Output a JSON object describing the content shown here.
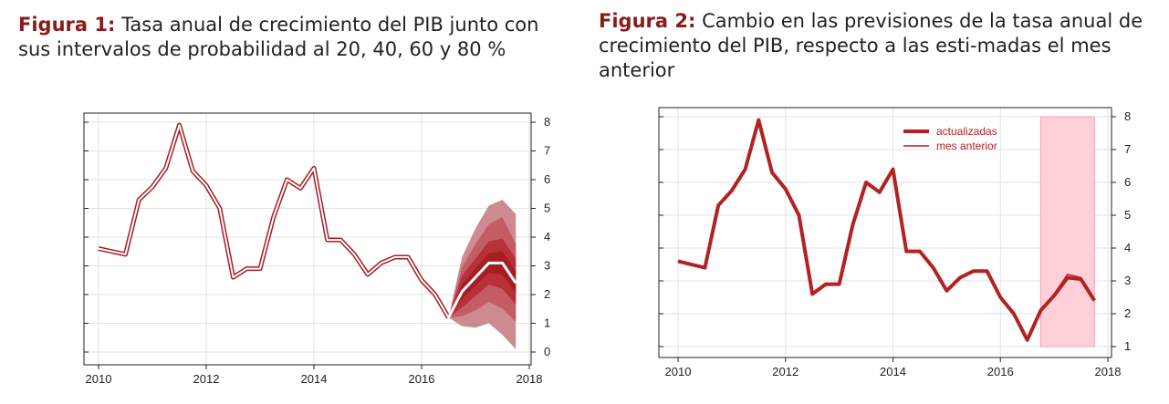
{
  "figures": [
    {
      "label": "Figura 1:",
      "title": "Tasa anual de crecimiento del PIB junto con sus intervalos de probabilidad al 20, 40, 60 y 80 %"
    },
    {
      "label": "Figura 2:",
      "title": "Cambio en las previsiones de la tasa anual de crecimiento del PIB, respecto a las esti-madas el mes anterior"
    }
  ],
  "chart_data": [
    {
      "type": "line",
      "x_ticks": [
        "2010",
        "2012",
        "2014",
        "2016",
        "2018"
      ],
      "y_ticks": [
        "0",
        "1",
        "2",
        "3",
        "4",
        "5",
        "6",
        "7",
        "8"
      ],
      "xlim": [
        2010,
        2018
      ],
      "ylim": [
        0,
        8
      ],
      "y_axis_side": "right",
      "grid": true,
      "colors": {
        "line": "#a31f24",
        "fan": [
          "#cd8a90",
          "#c45c64",
          "#b83038",
          "#a31f24"
        ],
        "forecast": "#ffffff"
      },
      "series": [
        {
          "x": [
            2010,
            2010.5,
            2010.75,
            2011,
            2011.25,
            2011.5,
            2011.75,
            2012,
            2012.25,
            2012.5,
            2012.75,
            2013,
            2013.25,
            2013.5,
            2013.75,
            2014,
            2014.25,
            2014.5,
            2014.75,
            2015,
            2015.25,
            2015.5,
            2015.75,
            2016,
            2016.25,
            2016.5
          ],
          "y": [
            3.6,
            3.4,
            5.3,
            5.75,
            6.4,
            7.9,
            6.3,
            5.8,
            5.0,
            2.6,
            2.9,
            2.9,
            4.7,
            6.0,
            5.7,
            6.4,
            3.9,
            3.9,
            3.4,
            2.7,
            3.1,
            3.3,
            3.3,
            2.5,
            2.0,
            1.2
          ]
        },
        {
          "x": [
            2016.5,
            2016.75,
            2017,
            2017.25,
            2017.5,
            2017.75
          ],
          "y": [
            1.2,
            2.1,
            2.6,
            3.1,
            3.1,
            2.4
          ]
        }
      ],
      "fan_intervals": [
        {
          "x": [
            2016.5,
            2016.75,
            2017,
            2017.25,
            2017.5,
            2017.75
          ],
          "lower": [
            1.2,
            0.9,
            0.85,
            1.0,
            0.6,
            0.1
          ],
          "upper": [
            1.2,
            3.3,
            4.3,
            5.1,
            5.3,
            4.8
          ]
        },
        {
          "x": [
            2016.5,
            2016.75,
            2017,
            2017.25,
            2017.5,
            2017.75
          ],
          "lower": [
            1.2,
            1.25,
            1.45,
            1.75,
            1.5,
            1.05
          ]
        },
        {
          "x": [
            2016.5,
            2016.75,
            2017,
            2017.25,
            2017.5,
            2017.75
          ],
          "lower": [
            1.2,
            1.55,
            1.95,
            2.35,
            2.2,
            1.65
          ],
          "upper": [
            1.2,
            2.65,
            3.25,
            3.85,
            3.95,
            3.25
          ]
        },
        {
          "x": [
            2016.5,
            2016.75,
            2017,
            2017.25,
            2017.5,
            2017.75
          ],
          "lower": [
            1.2,
            1.85,
            2.3,
            2.75,
            2.7,
            2.05
          ],
          "upper": [
            1.2,
            2.35,
            2.9,
            3.45,
            3.5,
            2.8
          ]
        }
      ]
    },
    {
      "type": "line",
      "x_ticks": [
        "2010",
        "2012",
        "2014",
        "2016",
        "2018"
      ],
      "y_ticks": [
        "1",
        "2",
        "3",
        "4",
        "5",
        "6",
        "7",
        "8"
      ],
      "xlim": [
        2010,
        2018
      ],
      "ylim": [
        1,
        8
      ],
      "y_axis_side": "right",
      "grid": true,
      "legend": {
        "placement": "top-center"
      },
      "colors": {
        "line": "#b22222",
        "shade": "#ffd0d8",
        "shade_border": "#f4a0b0"
      },
      "forecast_shade": {
        "x": [
          2016.75,
          2017.75
        ],
        "y": [
          1,
          8
        ]
      },
      "series": [
        {
          "name": "actualizadas",
          "x": [
            2010,
            2010.5,
            2010.75,
            2011,
            2011.25,
            2011.5,
            2011.75,
            2012,
            2012.25,
            2012.5,
            2012.75,
            2013,
            2013.25,
            2013.5,
            2013.75,
            2014,
            2014.25,
            2014.5,
            2014.75,
            2015,
            2015.25,
            2015.5,
            2015.75,
            2016,
            2016.25,
            2016.5,
            2016.75,
            2017,
            2017.25,
            2017.5,
            2017.75
          ],
          "y": [
            3.6,
            3.4,
            5.3,
            5.75,
            6.4,
            7.9,
            6.3,
            5.8,
            5.0,
            2.6,
            2.9,
            2.9,
            4.7,
            6.0,
            5.7,
            6.4,
            3.9,
            3.9,
            3.4,
            2.7,
            3.1,
            3.3,
            3.3,
            2.5,
            2.0,
            1.2,
            2.1,
            2.55,
            3.1,
            3.05,
            2.4
          ]
        },
        {
          "name": "mes anterior",
          "x": [
            2016.75,
            2017,
            2017.25,
            2017.5,
            2017.75
          ],
          "y": [
            2.1,
            2.6,
            3.2,
            3.1,
            2.4
          ]
        }
      ]
    }
  ]
}
